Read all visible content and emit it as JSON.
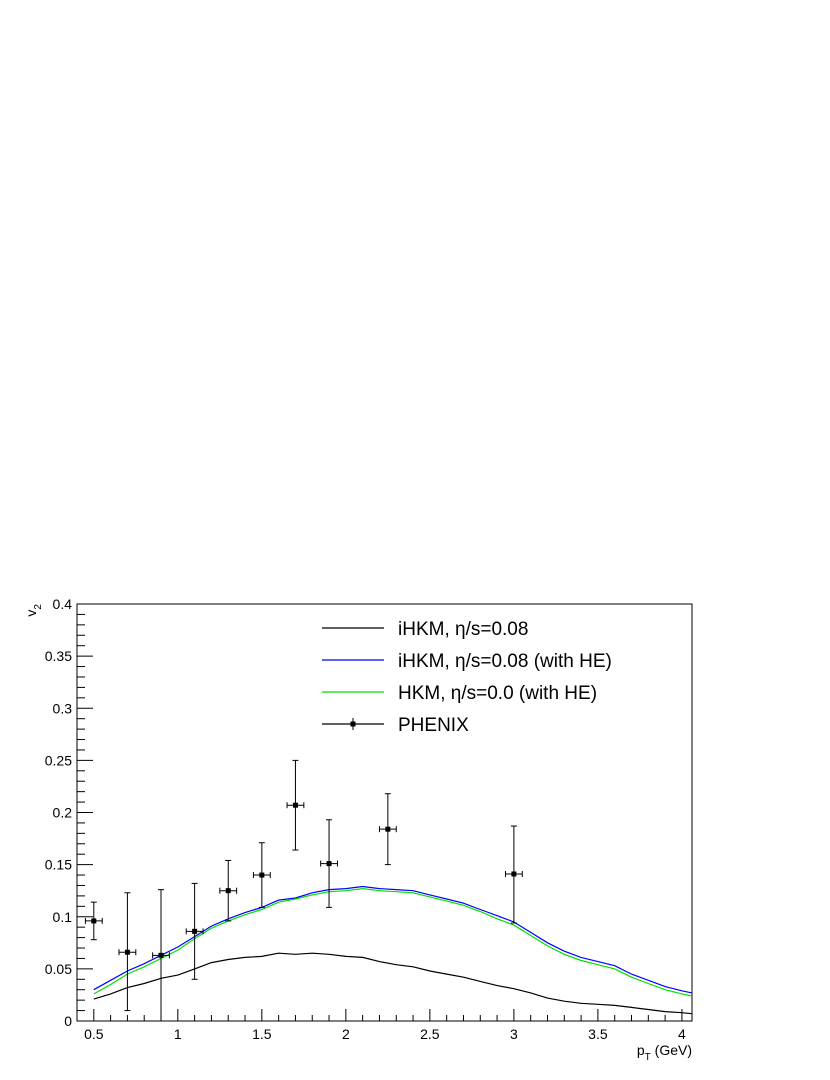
{
  "chart_data": {
    "type": "line",
    "xlabel": "p_T (GeV)",
    "xlabel_main": "p",
    "xlabel_sub": "T",
    "xlabel_unit": " (GeV)",
    "ylabel": "v_2",
    "ylabel_main": "v",
    "ylabel_sub": "2",
    "xlim": [
      0.4,
      4.06
    ],
    "ylim": [
      0,
      0.4
    ],
    "x_ticks": [
      0.5,
      1,
      1.5,
      2,
      2.5,
      3,
      3.5,
      4
    ],
    "x_tick_labels": [
      "0.5",
      "1",
      "1.5",
      "2",
      "2.5",
      "3",
      "3.5",
      "4"
    ],
    "y_ticks": [
      0,
      0.05,
      0.1,
      0.15,
      0.2,
      0.25,
      0.3,
      0.35,
      0.4
    ],
    "y_tick_labels": [
      "0",
      "0.05",
      "0.1",
      "0.15",
      "0.2",
      "0.25",
      "0.3",
      "0.35",
      "0.4"
    ],
    "legend_position": "top-right",
    "series": [
      {
        "name": "iHKM, η/s=0.08",
        "color": "#000000",
        "x": [
          0.5,
          0.6,
          0.7,
          0.8,
          0.9,
          1.0,
          1.1,
          1.2,
          1.3,
          1.4,
          1.5,
          1.6,
          1.7,
          1.8,
          1.9,
          2.0,
          2.1,
          2.2,
          2.3,
          2.4,
          2.5,
          2.6,
          2.7,
          2.8,
          2.9,
          3.0,
          3.1,
          3.2,
          3.3,
          3.4,
          3.5,
          3.6,
          3.7,
          3.8,
          3.9,
          4.0,
          4.06
        ],
        "y": [
          0.021,
          0.026,
          0.032,
          0.036,
          0.041,
          0.044,
          0.05,
          0.056,
          0.059,
          0.061,
          0.062,
          0.065,
          0.064,
          0.065,
          0.064,
          0.062,
          0.061,
          0.057,
          0.054,
          0.052,
          0.048,
          0.045,
          0.042,
          0.038,
          0.034,
          0.031,
          0.027,
          0.022,
          0.019,
          0.017,
          0.016,
          0.015,
          0.013,
          0.011,
          0.009,
          0.008,
          0.007
        ]
      },
      {
        "name": "iHKM, η/s=0.08 (with HE)",
        "color": "#0000ff",
        "x": [
          0.5,
          0.6,
          0.7,
          0.8,
          0.9,
          1.0,
          1.1,
          1.2,
          1.3,
          1.4,
          1.5,
          1.6,
          1.7,
          1.8,
          1.9,
          2.0,
          2.1,
          2.2,
          2.3,
          2.4,
          2.5,
          2.6,
          2.7,
          2.8,
          2.9,
          3.0,
          3.1,
          3.2,
          3.3,
          3.4,
          3.5,
          3.6,
          3.7,
          3.8,
          3.9,
          4.0,
          4.06
        ],
        "y": [
          0.03,
          0.039,
          0.048,
          0.055,
          0.063,
          0.071,
          0.081,
          0.091,
          0.098,
          0.104,
          0.109,
          0.116,
          0.118,
          0.123,
          0.126,
          0.127,
          0.129,
          0.127,
          0.126,
          0.125,
          0.121,
          0.117,
          0.113,
          0.107,
          0.101,
          0.095,
          0.085,
          0.075,
          0.067,
          0.061,
          0.057,
          0.053,
          0.045,
          0.039,
          0.033,
          0.029,
          0.027
        ]
      },
      {
        "name": "HKM, η/s=0.0 (with HE)",
        "color": "#00e000",
        "x": [
          0.5,
          0.6,
          0.7,
          0.8,
          0.9,
          1.0,
          1.1,
          1.2,
          1.3,
          1.4,
          1.5,
          1.6,
          1.7,
          1.8,
          1.9,
          2.0,
          2.1,
          2.2,
          2.3,
          2.4,
          2.5,
          2.6,
          2.7,
          2.8,
          2.9,
          3.0,
          3.1,
          3.2,
          3.3,
          3.4,
          3.5,
          3.6,
          3.7,
          3.8,
          3.9,
          4.0,
          4.06
        ],
        "y": [
          0.026,
          0.035,
          0.045,
          0.052,
          0.06,
          0.068,
          0.079,
          0.089,
          0.096,
          0.102,
          0.107,
          0.114,
          0.117,
          0.121,
          0.124,
          0.125,
          0.127,
          0.125,
          0.124,
          0.123,
          0.119,
          0.115,
          0.111,
          0.105,
          0.098,
          0.092,
          0.082,
          0.072,
          0.064,
          0.058,
          0.054,
          0.05,
          0.042,
          0.036,
          0.03,
          0.026,
          0.024
        ]
      }
    ],
    "data_points": {
      "name": "PHENIX",
      "color": "#000000",
      "points": [
        {
          "x": 0.5,
          "y": 0.096,
          "xerr": 0.05,
          "yerr_low": 0.018,
          "yerr_high": 0.018
        },
        {
          "x": 0.7,
          "y": 0.066,
          "xerr": 0.05,
          "yerr_low": 0.056,
          "yerr_high": 0.057
        },
        {
          "x": 0.9,
          "y": 0.063,
          "xerr": 0.05,
          "yerr_low": 0.063,
          "yerr_high": 0.063
        },
        {
          "x": 1.1,
          "y": 0.086,
          "xerr": 0.05,
          "yerr_low": 0.046,
          "yerr_high": 0.046
        },
        {
          "x": 1.3,
          "y": 0.125,
          "xerr": 0.05,
          "yerr_low": 0.029,
          "yerr_high": 0.029
        },
        {
          "x": 1.5,
          "y": 0.14,
          "xerr": 0.05,
          "yerr_low": 0.031,
          "yerr_high": 0.031
        },
        {
          "x": 1.7,
          "y": 0.207,
          "xerr": 0.05,
          "yerr_low": 0.043,
          "yerr_high": 0.043
        },
        {
          "x": 1.9,
          "y": 0.151,
          "xerr": 0.05,
          "yerr_low": 0.042,
          "yerr_high": 0.042
        },
        {
          "x": 2.25,
          "y": 0.184,
          "xerr": 0.05,
          "yerr_low": 0.034,
          "yerr_high": 0.034
        },
        {
          "x": 3.0,
          "y": 0.141,
          "xerr": 0.05,
          "yerr_low": 0.047,
          "yerr_high": 0.046
        }
      ]
    }
  }
}
